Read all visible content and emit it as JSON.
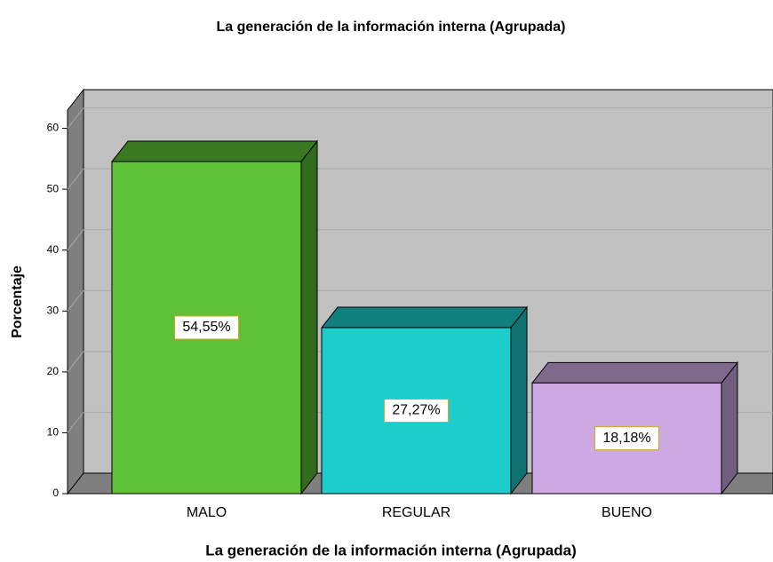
{
  "chart_data": {
    "type": "bar3d",
    "title": "La generación de la información interna (Agrupada)",
    "x_label": "La generación de la información interna (Agrupada)",
    "y_label": "Porcentaje",
    "categories": [
      "MALO",
      "REGULAR",
      "BUENO"
    ],
    "values": [
      54.55,
      27.27,
      18.18
    ],
    "value_labels": [
      "54,55%",
      "27,27%",
      "18,18%"
    ],
    "colors": [
      "#5dc236",
      "#1ccdcc",
      "#cda9e3"
    ],
    "ylim": [
      0,
      63
    ],
    "yticks": [
      0,
      10,
      20,
      30,
      40,
      50,
      60
    ],
    "grid": true
  }
}
